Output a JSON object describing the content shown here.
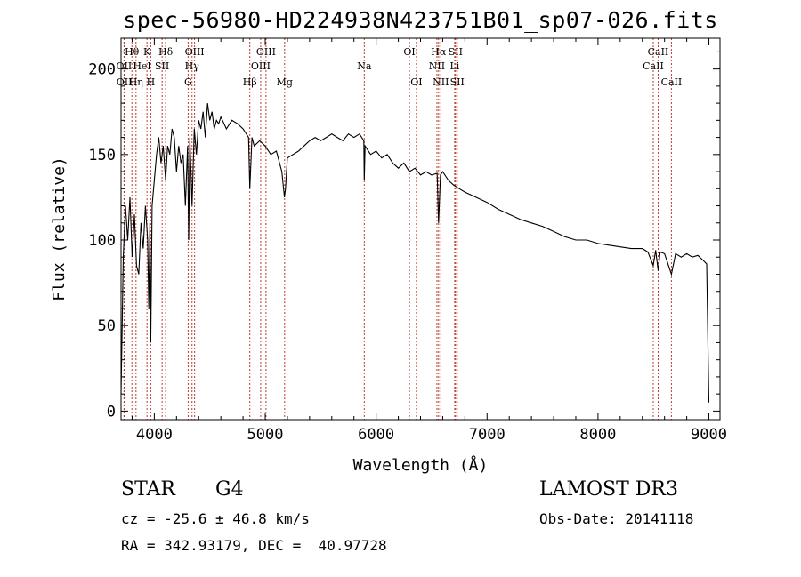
{
  "title": "spec-56980-HD224938N423751B01_sp07-026.fits",
  "chart_data": {
    "type": "line",
    "xlabel": "Wavelength (Å)",
    "ylabel": "Flux (relative)",
    "xlim": [
      3700,
      9100
    ],
    "ylim": [
      -5,
      218
    ],
    "x_ticks": [
      4000,
      5000,
      6000,
      7000,
      8000,
      9000
    ],
    "y_ticks": [
      0,
      50,
      100,
      150,
      200
    ],
    "series": [
      {
        "name": "spectrum",
        "x": [
          3700,
          3720,
          3740,
          3760,
          3780,
          3800,
          3820,
          3840,
          3860,
          3880,
          3900,
          3920,
          3940,
          3950,
          3960,
          3968,
          3980,
          4000,
          4020,
          4040,
          4060,
          4080,
          4102,
          4120,
          4140,
          4160,
          4180,
          4200,
          4220,
          4240,
          4260,
          4280,
          4300,
          4310,
          4320,
          4340,
          4360,
          4380,
          4400,
          4420,
          4440,
          4460,
          4480,
          4500,
          4520,
          4540,
          4560,
          4580,
          4600,
          4650,
          4700,
          4750,
          4800,
          4850,
          4861,
          4880,
          4900,
          4950,
          5000,
          5050,
          5100,
          5150,
          5173,
          5183,
          5200,
          5250,
          5300,
          5350,
          5400,
          5450,
          5500,
          5550,
          5600,
          5650,
          5700,
          5750,
          5800,
          5850,
          5889,
          5893,
          5900,
          5950,
          6000,
          6050,
          6100,
          6150,
          6200,
          6250,
          6300,
          6350,
          6400,
          6450,
          6500,
          6550,
          6563,
          6580,
          6600,
          6650,
          6700,
          6750,
          6800,
          6900,
          7000,
          7100,
          7200,
          7300,
          7400,
          7500,
          7600,
          7700,
          7800,
          7900,
          8000,
          8100,
          8200,
          8300,
          8400,
          8450,
          8498,
          8520,
          8542,
          8560,
          8600,
          8662,
          8700,
          8750,
          8800,
          8850,
          8900,
          8950,
          8980,
          9000
        ],
        "y": [
          10,
          90,
          120,
          100,
          125,
          90,
          115,
          85,
          80,
          110,
          95,
          120,
          100,
          60,
          110,
          40,
          120,
          135,
          150,
          160,
          145,
          155,
          135,
          155,
          150,
          165,
          160,
          140,
          155,
          145,
          150,
          120,
          155,
          100,
          160,
          120,
          165,
          150,
          170,
          165,
          175,
          160,
          180,
          170,
          175,
          165,
          170,
          168,
          172,
          165,
          170,
          168,
          165,
          160,
          130,
          160,
          155,
          158,
          155,
          150,
          152,
          140,
          125,
          130,
          148,
          150,
          152,
          155,
          158,
          160,
          158,
          160,
          162,
          160,
          158,
          162,
          160,
          162,
          158,
          135,
          155,
          150,
          152,
          148,
          150,
          145,
          142,
          145,
          140,
          142,
          138,
          140,
          138,
          139,
          110,
          138,
          140,
          135,
          132,
          130,
          128,
          125,
          122,
          118,
          115,
          112,
          110,
          108,
          105,
          102,
          100,
          100,
          98,
          97,
          96,
          95,
          95,
          93,
          85,
          94,
          82,
          93,
          92,
          80,
          92,
          90,
          92,
          90,
          91,
          88,
          86,
          5
        ]
      }
    ],
    "spectral_lines": [
      {
        "label": "Hθ",
        "wavelength": 3798,
        "row": 1
      },
      {
        "label": "OII",
        "wavelength": 3727,
        "row": 2
      },
      {
        "label": "OII",
        "wavelength": 3729,
        "row": 3
      },
      {
        "label": "K",
        "wavelength": 3934,
        "row": 1
      },
      {
        "label": "HeI",
        "wavelength": 3889,
        "row": 2
      },
      {
        "label": "Hη",
        "wavelength": 3835,
        "row": 3
      },
      {
        "label": "SII",
        "wavelength": 4070,
        "row": 2
      },
      {
        "label": "H",
        "wavelength": 3968,
        "row": 3
      },
      {
        "label": "Hδ",
        "wavelength": 4102,
        "row": 1
      },
      {
        "label": "OIII",
        "wavelength": 4363,
        "row": 1
      },
      {
        "label": "Hγ",
        "wavelength": 4340,
        "row": 2
      },
      {
        "label": "G",
        "wavelength": 4305,
        "row": 3
      },
      {
        "label": "OIII",
        "wavelength": 5007,
        "row": 1
      },
      {
        "label": "OIII",
        "wavelength": 4959,
        "row": 2
      },
      {
        "label": "Hβ",
        "wavelength": 4861,
        "row": 3
      },
      {
        "label": "Mg",
        "wavelength": 5175,
        "row": 3
      },
      {
        "label": "Na",
        "wavelength": 5893,
        "row": 2
      },
      {
        "label": "OI",
        "wavelength": 6300,
        "row": 1
      },
      {
        "label": "OI",
        "wavelength": 6363,
        "row": 3
      },
      {
        "label": "Hα",
        "wavelength": 6563,
        "row": 1
      },
      {
        "label": "SII",
        "wavelength": 6716,
        "row": 1
      },
      {
        "label": "NII",
        "wavelength": 6548,
        "row": 2
      },
      {
        "label": "Li",
        "wavelength": 6708,
        "row": 2
      },
      {
        "label": "NII",
        "wavelength": 6583,
        "row": 3
      },
      {
        "label": "SII",
        "wavelength": 6731,
        "row": 3
      },
      {
        "label": "CaII",
        "wavelength": 8542,
        "row": 1
      },
      {
        "label": "CaII",
        "wavelength": 8498,
        "row": 2
      },
      {
        "label": "CaII",
        "wavelength": 8662,
        "row": 3
      }
    ]
  },
  "info": {
    "class": "STAR",
    "subclass": "G4",
    "survey": "LAMOST DR3",
    "redshift": "cz = -25.6 ± 46.8 km/s",
    "obs_date": "Obs-Date: 20141118",
    "coords": "RA = 342.93179, DEC =  40.97728"
  }
}
